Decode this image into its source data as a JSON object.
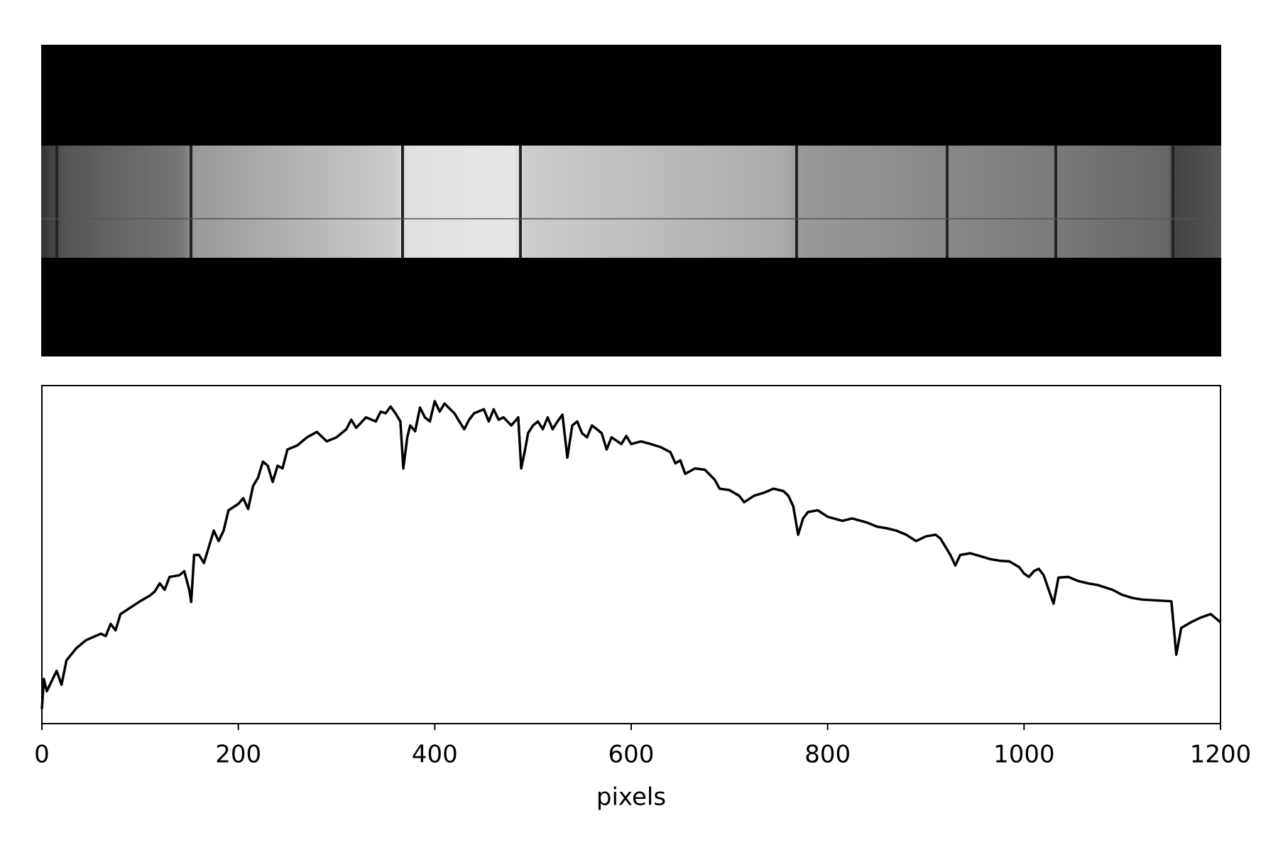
{
  "chart_data": {
    "type": "line",
    "xlabel": "pixels",
    "x": [
      0,
      2,
      5,
      15,
      20,
      25,
      35,
      45,
      60,
      65,
      70,
      75,
      80,
      90,
      100,
      110,
      115,
      120,
      125,
      130,
      140,
      145,
      150,
      152,
      155,
      160,
      165,
      170,
      175,
      180,
      185,
      190,
      200,
      205,
      210,
      215,
      220,
      225,
      230,
      235,
      240,
      245,
      250,
      260,
      270,
      280,
      290,
      300,
      310,
      315,
      320,
      330,
      340,
      345,
      350,
      355,
      360,
      365,
      368,
      372,
      375,
      380,
      385,
      390,
      395,
      400,
      405,
      410,
      420,
      425,
      430,
      435,
      440,
      450,
      455,
      460,
      465,
      470,
      478,
      485,
      488,
      492,
      495,
      500,
      505,
      510,
      515,
      520,
      525,
      530,
      535,
      540,
      545,
      550,
      555,
      560,
      565,
      570,
      575,
      580,
      590,
      595,
      600,
      610,
      620,
      630,
      640,
      645,
      650,
      655,
      665,
      675,
      685,
      690,
      700,
      710,
      715,
      725,
      735,
      745,
      755,
      760,
      765,
      770,
      775,
      780,
      790,
      800,
      815,
      825,
      840,
      850,
      860,
      870,
      880,
      890,
      900,
      910,
      915,
      920,
      925,
      930,
      935,
      945,
      955,
      965,
      975,
      985,
      995,
      1000,
      1005,
      1010,
      1015,
      1020,
      1030,
      1035,
      1045,
      1055,
      1065,
      1075,
      1090,
      1100,
      1110,
      1120,
      1150,
      1155,
      1160,
      1170,
      1180,
      1190,
      1200
    ],
    "series": [
      {
        "color": "#000000",
        "values": [
          4.3,
          13.2,
          9.6,
          15.6,
          11.5,
          18.7,
          22.3,
          24.7,
          26.6,
          25.9,
          29.5,
          27.6,
          32.4,
          34.3,
          36.2,
          37.9,
          39.1,
          41.5,
          39.6,
          43.4,
          43.9,
          45.1,
          39.6,
          36.0,
          49.9,
          49.9,
          47.5,
          52.3,
          57.1,
          54.0,
          57.1,
          63.1,
          65.0,
          66.7,
          63.5,
          70.3,
          72.7,
          77.5,
          76.3,
          71.5,
          76.3,
          75.5,
          81.1,
          82.3,
          84.7,
          86.3,
          83.5,
          84.7,
          87.1,
          89.9,
          87.5,
          90.6,
          89.4,
          92.3,
          91.8,
          93.8,
          91.8,
          89.4,
          75.5,
          84.7,
          88.2,
          86.5,
          93.5,
          90.6,
          89.4,
          95.4,
          92.3,
          94.7,
          91.8,
          89.4,
          87.1,
          89.9,
          91.8,
          93.0,
          89.4,
          93.0,
          89.9,
          90.6,
          88.2,
          90.6,
          75.5,
          81.1,
          85.9,
          88.2,
          89.4,
          87.1,
          90.6,
          87.1,
          89.4,
          91.4,
          78.7,
          88.2,
          89.4,
          85.9,
          84.7,
          88.2,
          87.1,
          85.9,
          81.1,
          84.7,
          82.7,
          85.1,
          82.7,
          83.5,
          82.7,
          81.8,
          80.3,
          77.0,
          77.9,
          73.9,
          75.5,
          75.1,
          72.2,
          69.5,
          69.1,
          67.4,
          65.5,
          67.4,
          68.3,
          69.5,
          68.8,
          67.4,
          64.3,
          55.9,
          60.7,
          62.6,
          63.1,
          61.2,
          60.0,
          60.7,
          59.5,
          58.3,
          57.8,
          57.1,
          55.9,
          54.0,
          55.4,
          55.9,
          54.7,
          52.3,
          49.9,
          46.8,
          49.9,
          50.4,
          49.6,
          48.7,
          48.2,
          48.0,
          46.3,
          44.4,
          43.4,
          45.1,
          45.8,
          43.9,
          35.5,
          43.2,
          43.4,
          42.2,
          41.5,
          41.0,
          39.6,
          38.1,
          37.2,
          36.7,
          36.2,
          20.4,
          28.3,
          30.0,
          31.4,
          32.4,
          30.0
        ]
      }
    ],
    "xlim": [
      0,
      1200
    ],
    "xticks": [
      0,
      200,
      400,
      600,
      800,
      1000,
      1200
    ],
    "ylim": [
      0,
      100
    ]
  }
}
